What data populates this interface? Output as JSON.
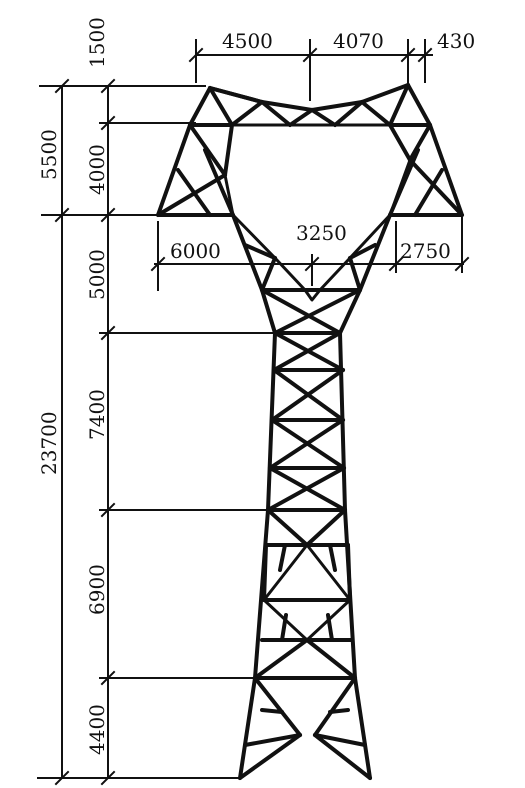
{
  "diagram": {
    "colors": {
      "line": "#111111",
      "background": "#ffffff"
    },
    "dimensions": {
      "top_width_left": "4500",
      "top_width_right": "4070",
      "top_width_tip": "430",
      "peak_height": "1500",
      "upper_span": "5500",
      "crossarm_height": "4000",
      "waist_width": "3250",
      "left_arm_length": "6000",
      "right_arm_length": "2750",
      "neck_height": "5000",
      "total_body_height": "23700",
      "segment_7400": "7400",
      "segment_6900": "6900",
      "segment_4400": "4400"
    }
  }
}
